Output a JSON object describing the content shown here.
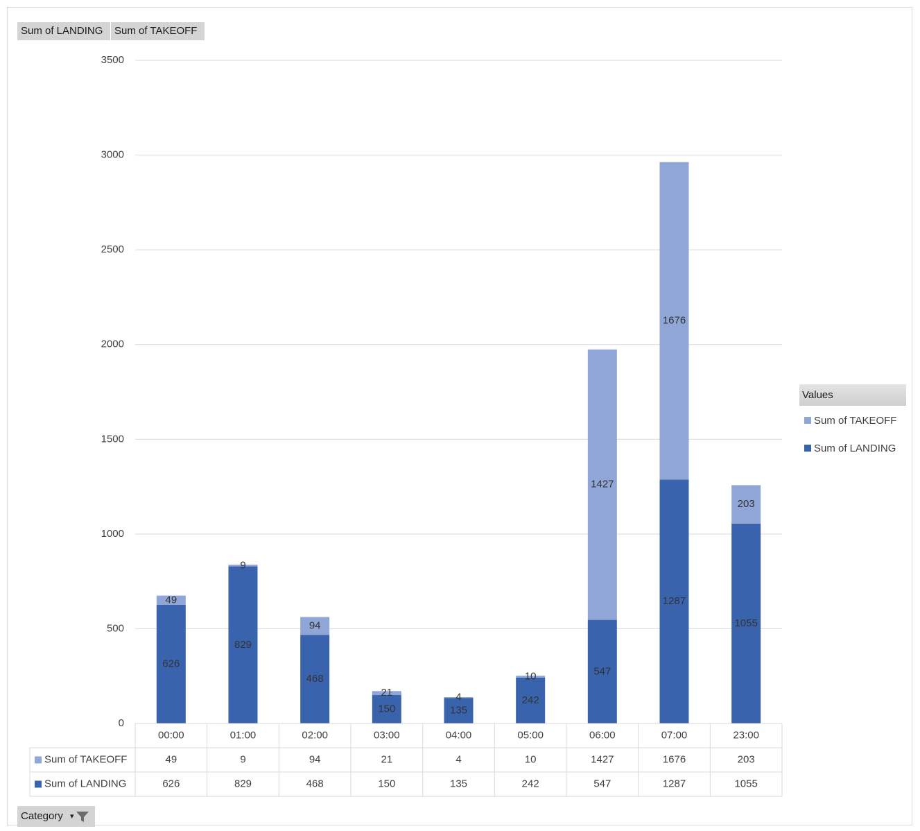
{
  "field_buttons": [
    "Sum of LANDING",
    "Sum of TAKEOFF"
  ],
  "category_filter": {
    "label": "Category",
    "icon": "filter-icon",
    "dropdown_icon": "dropdown-arrow-icon"
  },
  "legend": {
    "title": "Values"
  },
  "colors": {
    "landing": "#3a63ae",
    "takeoff": "#8fa6d6",
    "grid": "#d9d9d9",
    "text": "#404040"
  },
  "chart_data": {
    "type": "bar",
    "stacked": true,
    "categories": [
      "00:00",
      "01:00",
      "02:00",
      "03:00",
      "04:00",
      "05:00",
      "06:00",
      "07:00",
      "23:00"
    ],
    "series": [
      {
        "name": "Sum of LANDING",
        "values": [
          626,
          829,
          468,
          150,
          135,
          242,
          547,
          1287,
          1055
        ]
      },
      {
        "name": "Sum of TAKEOFF",
        "values": [
          49,
          9,
          94,
          21,
          4,
          10,
          1427,
          1676,
          203
        ]
      }
    ],
    "ylim": [
      0,
      3500
    ],
    "yticks": [
      0,
      500,
      1000,
      1500,
      2000,
      2500,
      3000,
      3500
    ],
    "grid": true,
    "legend_position": "right",
    "data_labels": true,
    "data_table": true
  }
}
